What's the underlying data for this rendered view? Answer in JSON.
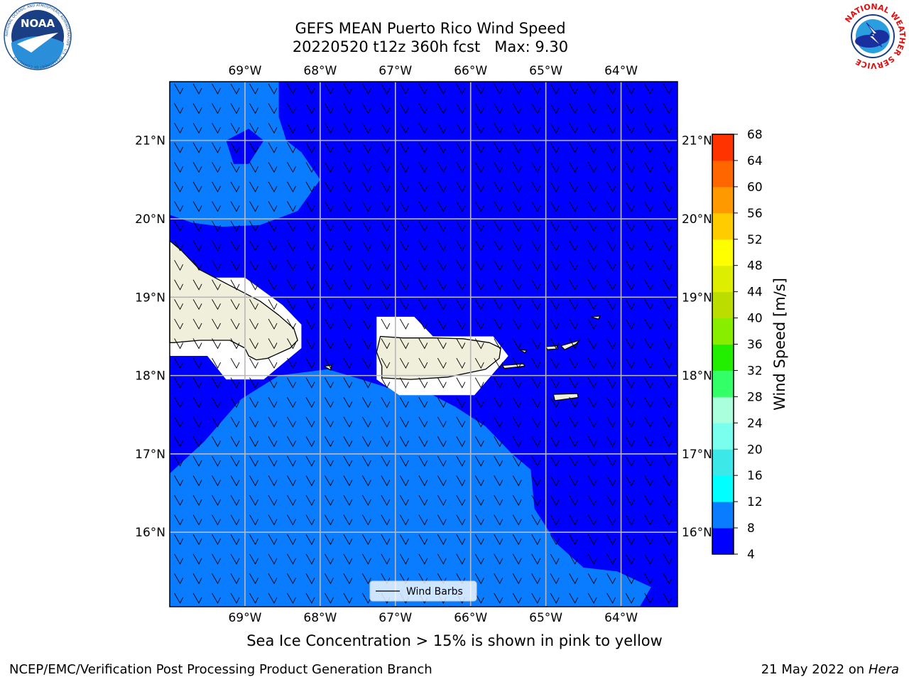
{
  "title": "GEFS MEAN Puerto Rico Wind Speed",
  "subtitle": "20220520 t12z 360h fcst   Max: 9.30",
  "caption": "Sea Ice Concentration > 15% is shown in pink to yellow",
  "footer_left": "NCEP/EMC/Verification Post Processing Product Generation Branch",
  "footer_right_date": "21 May 2022 on",
  "footer_right_machine": "Hera",
  "logos": {
    "left": {
      "name": "noaa-logo",
      "text": "NOAA",
      "ring_text": "NATIONAL OCEANIC AND ATMOSPHERIC ADMINISTRATION · U.S. DEPARTMENT OF COMMERCE"
    },
    "right": {
      "name": "nws-logo",
      "ring_text": "NATIONAL WEATHER SERVICE"
    }
  },
  "chart_data": {
    "type": "heatmap",
    "lon_range": [
      -70,
      -63.25
    ],
    "lat_range": [
      15.05,
      21.75
    ],
    "x_ticks": [
      {
        "v": -69,
        "label": "69°W"
      },
      {
        "v": -68,
        "label": "68°W"
      },
      {
        "v": -67,
        "label": "67°W"
      },
      {
        "v": -66,
        "label": "66°W"
      },
      {
        "v": -65,
        "label": "65°W"
      },
      {
        "v": -64,
        "label": "64°W"
      }
    ],
    "y_ticks": [
      {
        "v": 16,
        "label": "16°N"
      },
      {
        "v": 17,
        "label": "17°N"
      },
      {
        "v": 18,
        "label": "18°N"
      },
      {
        "v": 19,
        "label": "19°N"
      },
      {
        "v": 20,
        "label": "20°N"
      },
      {
        "v": 21,
        "label": "21°N"
      }
    ],
    "grid": true,
    "legend": {
      "label": "Wind Barbs",
      "placement": "bottom-center"
    },
    "background_class": "4-8 m/s",
    "regions": [
      {
        "name": "8-12 m/s north",
        "color": "#0a7cff",
        "lonlat": [
          [
            -70,
            21.75
          ],
          [
            -68.55,
            21.75
          ],
          [
            -68.55,
            21.3
          ],
          [
            -68.45,
            21
          ],
          [
            -68.25,
            20.85
          ],
          [
            -68,
            20.5
          ],
          [
            -68.3,
            20.1
          ],
          [
            -68.8,
            19.92
          ],
          [
            -69.3,
            19.9
          ],
          [
            -69.7,
            19.95
          ],
          [
            -70,
            20.05
          ]
        ]
      },
      {
        "name": "4-8 m/s pocket",
        "color": "#0000ff",
        "lonlat": [
          [
            -69.25,
            21.0
          ],
          [
            -68.95,
            21.15
          ],
          [
            -68.75,
            21.0
          ],
          [
            -68.95,
            20.7
          ],
          [
            -69.15,
            20.7
          ]
        ]
      },
      {
        "name": "8-12 m/s south",
        "color": "#0a7cff",
        "lonlat": [
          [
            -70,
            16.75
          ],
          [
            -69.55,
            17.15
          ],
          [
            -69.05,
            17.7
          ],
          [
            -68.55,
            18.0
          ],
          [
            -67.9,
            18.08
          ],
          [
            -67.45,
            17.95
          ],
          [
            -66.95,
            17.8
          ],
          [
            -66.5,
            17.75
          ],
          [
            -66.2,
            17.6
          ],
          [
            -65.8,
            17.35
          ],
          [
            -65.45,
            17.0
          ],
          [
            -65.2,
            16.8
          ],
          [
            -65.15,
            16.3
          ],
          [
            -64.85,
            15.85
          ],
          [
            -64.5,
            15.55
          ],
          [
            -64.05,
            15.5
          ],
          [
            -63.6,
            15.3
          ],
          [
            -63.75,
            15.05
          ],
          [
            -70,
            15.05
          ]
        ]
      },
      {
        "name": "land mask Hispaniola",
        "color": "#ffffff",
        "lonlat": [
          [
            -70,
            19.25
          ],
          [
            -69,
            19.25
          ],
          [
            -68.5,
            18.9
          ],
          [
            -68.25,
            18.65
          ],
          [
            -68.25,
            18.35
          ],
          [
            -68.75,
            17.95
          ],
          [
            -69.25,
            17.95
          ],
          [
            -69.5,
            18.25
          ],
          [
            -70,
            18.25
          ]
        ]
      },
      {
        "name": "land mask Puerto Rico",
        "color": "#ffffff",
        "lonlat": [
          [
            -67.25,
            18.75
          ],
          [
            -66.75,
            18.75
          ],
          [
            -66.5,
            18.5
          ],
          [
            -65.7,
            18.5
          ],
          [
            -65.5,
            18.25
          ],
          [
            -65.95,
            17.75
          ],
          [
            -66.95,
            17.75
          ],
          [
            -67.25,
            17.95
          ]
        ]
      }
    ],
    "land": [
      {
        "name": "Hispaniola",
        "lonlat": [
          [
            -70,
            19.72
          ],
          [
            -69.85,
            19.6
          ],
          [
            -69.6,
            19.35
          ],
          [
            -69.3,
            19.2
          ],
          [
            -69.0,
            19.05
          ],
          [
            -68.8,
            18.95
          ],
          [
            -68.55,
            18.77
          ],
          [
            -68.35,
            18.6
          ],
          [
            -68.3,
            18.45
          ],
          [
            -68.4,
            18.35
          ],
          [
            -68.7,
            18.22
          ],
          [
            -68.85,
            18.2
          ],
          [
            -68.95,
            18.25
          ],
          [
            -69.0,
            18.35
          ],
          [
            -69.2,
            18.45
          ],
          [
            -69.6,
            18.45
          ],
          [
            -69.95,
            18.42
          ],
          [
            -70,
            18.42
          ]
        ]
      },
      {
        "name": "Puerto Rico",
        "lonlat": [
          [
            -67.2,
            18.5
          ],
          [
            -66.9,
            18.48
          ],
          [
            -66.5,
            18.48
          ],
          [
            -66.1,
            18.47
          ],
          [
            -65.75,
            18.42
          ],
          [
            -65.6,
            18.35
          ],
          [
            -65.62,
            18.22
          ],
          [
            -65.8,
            18.08
          ],
          [
            -66.3,
            17.98
          ],
          [
            -66.8,
            17.95
          ],
          [
            -67.18,
            17.97
          ],
          [
            -67.18,
            18.12
          ],
          [
            -67.25,
            18.3
          ]
        ]
      },
      {
        "name": "Vieques",
        "lonlat": [
          [
            -65.58,
            18.13
          ],
          [
            -65.3,
            18.15
          ],
          [
            -65.28,
            18.12
          ],
          [
            -65.55,
            18.09
          ]
        ]
      },
      {
        "name": "Culebra",
        "lonlat": [
          [
            -65.35,
            18.33
          ],
          [
            -65.25,
            18.32
          ],
          [
            -65.28,
            18.29
          ]
        ]
      },
      {
        "name": "St Thomas",
        "lonlat": [
          [
            -65.0,
            18.37
          ],
          [
            -64.85,
            18.38
          ],
          [
            -64.84,
            18.34
          ],
          [
            -64.98,
            18.33
          ]
        ]
      },
      {
        "name": "St John Tortola",
        "lonlat": [
          [
            -64.8,
            18.38
          ],
          [
            -64.55,
            18.45
          ],
          [
            -64.6,
            18.4
          ],
          [
            -64.75,
            18.33
          ]
        ]
      },
      {
        "name": "Anegada",
        "lonlat": [
          [
            -64.4,
            18.75
          ],
          [
            -64.28,
            18.76
          ],
          [
            -64.3,
            18.72
          ]
        ]
      },
      {
        "name": "St Croix",
        "lonlat": [
          [
            -64.9,
            17.76
          ],
          [
            -64.58,
            17.77
          ],
          [
            -64.57,
            17.72
          ],
          [
            -64.88,
            17.68
          ]
        ]
      },
      {
        "name": "Mona",
        "lonlat": [
          [
            -67.95,
            18.12
          ],
          [
            -67.85,
            18.13
          ],
          [
            -67.86,
            18.07
          ]
        ]
      }
    ],
    "colorbar": {
      "label": "Wind Speed [m/s]",
      "levels": [
        4,
        8,
        12,
        16,
        20,
        24,
        28,
        32,
        36,
        40,
        44,
        48,
        52,
        56,
        60,
        64,
        68
      ],
      "colors": [
        "#0000ff",
        "#0a7cff",
        "#00ffff",
        "#3ce8e8",
        "#7affee",
        "#aaffdd",
        "#33ff66",
        "#22ee00",
        "#88ee00",
        "#bbdd00",
        "#ddee00",
        "#ffff00",
        "#ffcc00",
        "#ff9900",
        "#ff6600",
        "#ff3300",
        "#ff0000"
      ]
    }
  }
}
